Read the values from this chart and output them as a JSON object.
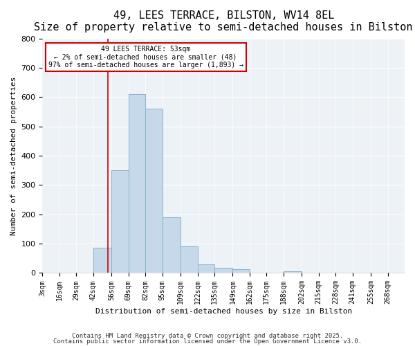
{
  "title": "49, LEES TERRACE, BILSTON, WV14 8EL",
  "subtitle": "Size of property relative to semi-detached houses in Bilston",
  "xlabel": "Distribution of semi-detached houses by size in Bilston",
  "ylabel": "Number of semi-detached properties",
  "bar_color": "#c5d9ea",
  "bar_edge_color": "#8ab4cc",
  "background_color": "#edf2f7",
  "fig_background": "#ffffff",
  "bin_edges": [
    3,
    16,
    29,
    42,
    56,
    69,
    82,
    95,
    109,
    122,
    135,
    149,
    162,
    175,
    188,
    202,
    215,
    228,
    241,
    255,
    268,
    281
  ],
  "bin_labels": [
    "3sqm",
    "16sqm",
    "29sqm",
    "42sqm",
    "56sqm",
    "69sqm",
    "82sqm",
    "95sqm",
    "109sqm",
    "122sqm",
    "135sqm",
    "149sqm",
    "162sqm",
    "175sqm",
    "188sqm",
    "202sqm",
    "215sqm",
    "228sqm",
    "241sqm",
    "255sqm",
    "268sqm"
  ],
  "counts": [
    0,
    0,
    0,
    85,
    350,
    610,
    560,
    190,
    90,
    30,
    18,
    12,
    0,
    0,
    5,
    0,
    0,
    0,
    0,
    0,
    0
  ],
  "property_size": 53,
  "vline_color": "#cc0000",
  "annotation_line1": "49 LEES TERRACE: 53sqm",
  "annotation_line2": "← 2% of semi-detached houses are smaller (48)",
  "annotation_line3": "97% of semi-detached houses are larger (1,893) →",
  "annotation_box_color": "#ffffff",
  "annotation_box_edge_color": "#cc0000",
  "ylim": [
    0,
    800
  ],
  "yticks": [
    0,
    100,
    200,
    300,
    400,
    500,
    600,
    700,
    800
  ],
  "footer1": "Contains HM Land Registry data © Crown copyright and database right 2025.",
  "footer2": "Contains public sector information licensed under the Open Government Licence v3.0.",
  "title_fontsize": 11,
  "subtitle_fontsize": 9,
  "axis_label_fontsize": 8,
  "tick_fontsize": 7,
  "footer_fontsize": 6.5
}
